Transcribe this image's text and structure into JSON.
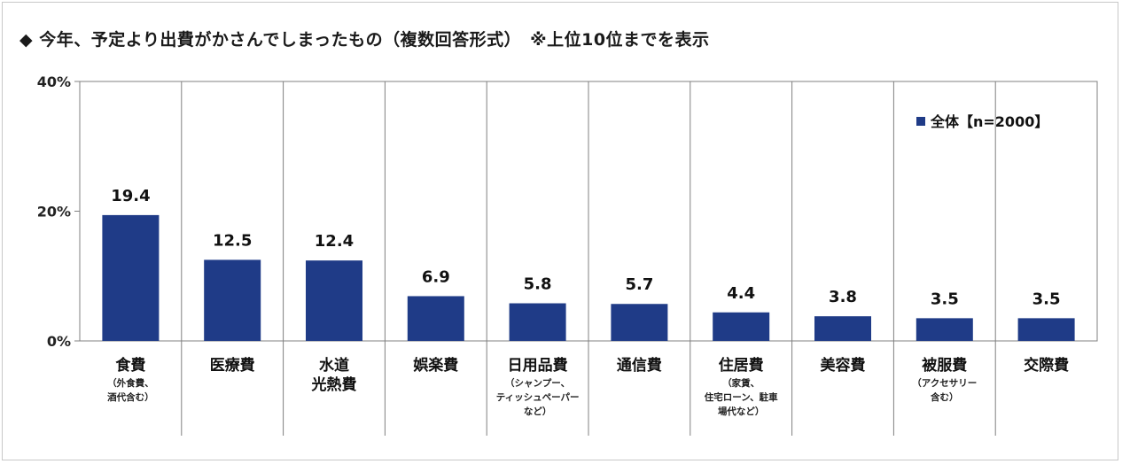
{
  "title": "◆ 今年、予定より出費がかさんでしまったもの（複数回答形式）　※上位10位までを表示",
  "chart_data": {
    "type": "bar",
    "ylim": [
      0,
      40
    ],
    "yticks": [
      {
        "value": 0,
        "label": "0%"
      },
      {
        "value": 20,
        "label": "20%"
      },
      {
        "value": 40,
        "label": "40%"
      }
    ],
    "series": [
      {
        "name": "全体【n=2000】",
        "color": "#1f3b87",
        "values": [
          19.4,
          12.5,
          12.4,
          6.9,
          5.8,
          5.7,
          4.4,
          3.8,
          3.5,
          3.5
        ]
      }
    ],
    "value_labels": [
      "19.4",
      "12.5",
      "12.4",
      "6.9",
      "5.8",
      "5.7",
      "4.4",
      "3.8",
      "3.5",
      "3.5"
    ],
    "categories": [
      {
        "lines": [
          "食費"
        ],
        "sub": [
          "（外食費、",
          "酒代含む）"
        ]
      },
      {
        "lines": [
          "医療費"
        ],
        "sub": []
      },
      {
        "lines": [
          "水道",
          "光熱費"
        ],
        "sub": []
      },
      {
        "lines": [
          "娯楽費"
        ],
        "sub": []
      },
      {
        "lines": [
          "日用品費"
        ],
        "sub": [
          "（シャンプー、",
          "ティッシュペーパー",
          "など）"
        ]
      },
      {
        "lines": [
          "通信費"
        ],
        "sub": []
      },
      {
        "lines": [
          "住居費"
        ],
        "sub": [
          "（家賃、",
          "住宅ローン、駐車",
          "場代など）"
        ]
      },
      {
        "lines": [
          "美容費"
        ],
        "sub": []
      },
      {
        "lines": [
          "被服費"
        ],
        "sub": [
          "（アクセサリー",
          "含む）"
        ]
      },
      {
        "lines": [
          "交際費"
        ],
        "sub": []
      }
    ],
    "legend": {
      "label": "全体【n=2000】",
      "position": "top-right"
    },
    "grid": false
  }
}
